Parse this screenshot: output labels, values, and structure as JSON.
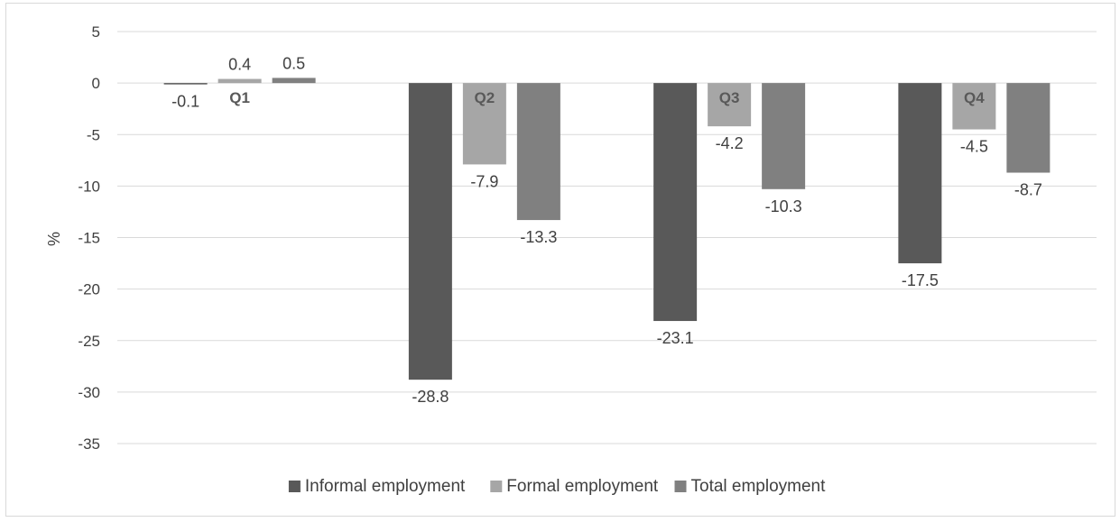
{
  "chart_data": {
    "type": "bar",
    "categories": [
      "Q1",
      "Q2",
      "Q3",
      "Q4"
    ],
    "series": [
      {
        "name": "Informal employment",
        "values": [
          -0.1,
          -28.8,
          -23.1,
          -17.5
        ],
        "color": "#595959"
      },
      {
        "name": "Formal employment",
        "values": [
          0.4,
          -7.9,
          -4.2,
          -4.5
        ],
        "color": "#a6a6a6"
      },
      {
        "name": "Total employment",
        "values": [
          0.5,
          -13.3,
          -10.3,
          -8.7
        ],
        "color": "#808080"
      }
    ],
    "title": "",
    "xlabel": "",
    "ylabel": "%",
    "ylim": [
      -35,
      5
    ],
    "yticks": [
      5,
      0,
      -5,
      -10,
      -15,
      -20,
      -25,
      -30,
      -35
    ],
    "grid": true,
    "legend": "bottom",
    "gridline_color": "#d9d9d9"
  }
}
